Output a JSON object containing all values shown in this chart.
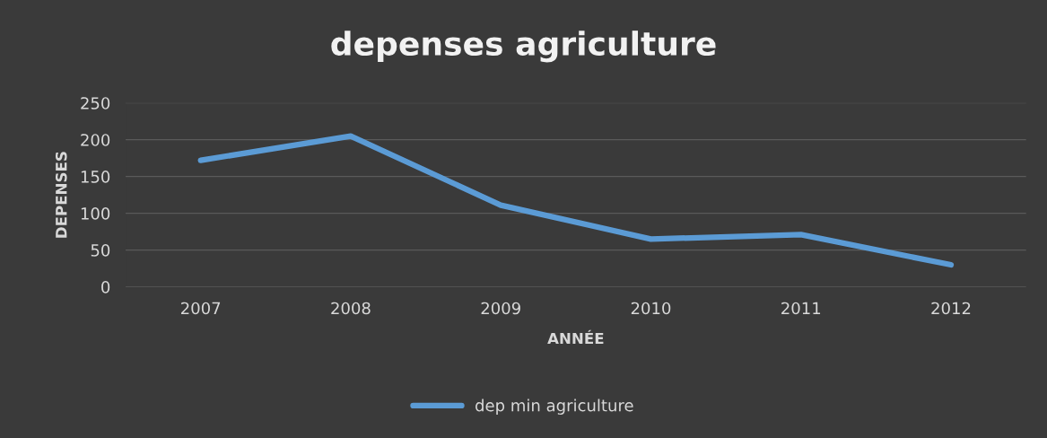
{
  "chart_data": {
    "type": "line",
    "title": "depenses agriculture",
    "xlabel": "ANNÉE",
    "ylabel": "DEPENSES",
    "categories": [
      "2007",
      "2008",
      "2009",
      "2010",
      "2011",
      "2012"
    ],
    "series": [
      {
        "name": "dep min agriculture",
        "color": "#5b9bd5",
        "values": [
          172,
          205,
          111,
          65,
          71,
          30
        ]
      }
    ],
    "ylim": [
      0,
      250
    ],
    "yticks": [
      0,
      50,
      100,
      150,
      200,
      250
    ],
    "grid": "y",
    "legend": "bottom",
    "marker": "none",
    "line_style": "solid"
  }
}
